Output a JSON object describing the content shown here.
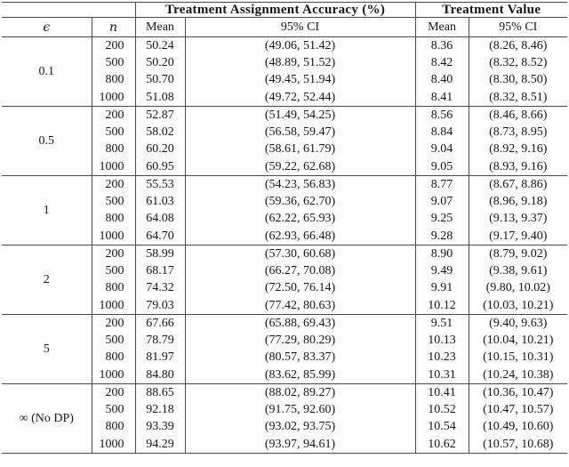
{
  "table": {
    "title_groups": {
      "accuracy": "Treatment Assignment Accuracy (%)",
      "value": "Treatment Value"
    },
    "columns": {
      "epsilon": "ϵ",
      "n": "n",
      "mean": "Mean",
      "ci": "95% CI"
    },
    "line_color": "#4a4a4a",
    "text_color": "#161616",
    "groups": [
      {
        "epsilon": "0.1",
        "rows": [
          {
            "n": "200",
            "acc_mean": "50.24",
            "acc_ci": "(49.06, 51.42)",
            "val_mean": "8.36",
            "val_ci": "(8.26, 8.46)"
          },
          {
            "n": "500",
            "acc_mean": "50.20",
            "acc_ci": "(48.89, 51.52)",
            "val_mean": "8.42",
            "val_ci": "(8.32, 8.52)"
          },
          {
            "n": "800",
            "acc_mean": "50.70",
            "acc_ci": "(49.45, 51.94)",
            "val_mean": "8.40",
            "val_ci": "(8.30, 8.50)"
          },
          {
            "n": "1000",
            "acc_mean": "51.08",
            "acc_ci": "(49.72, 52.44)",
            "val_mean": "8.41",
            "val_ci": "(8.32, 8.51)"
          }
        ]
      },
      {
        "epsilon": "0.5",
        "rows": [
          {
            "n": "200",
            "acc_mean": "52.87",
            "acc_ci": "(51.49, 54.25)",
            "val_mean": "8.56",
            "val_ci": "(8.46, 8.66)"
          },
          {
            "n": "500",
            "acc_mean": "58.02",
            "acc_ci": "(56.58, 59.47)",
            "val_mean": "8.84",
            "val_ci": "(8.73, 8.95)"
          },
          {
            "n": "800",
            "acc_mean": "60.20",
            "acc_ci": "(58.61, 61.79)",
            "val_mean": "9.04",
            "val_ci": "(8.92, 9.16)"
          },
          {
            "n": "1000",
            "acc_mean": "60.95",
            "acc_ci": "(59.22, 62.68)",
            "val_mean": "9.05",
            "val_ci": "(8.93, 9.16)"
          }
        ]
      },
      {
        "epsilon": "1",
        "rows": [
          {
            "n": "200",
            "acc_mean": "55.53",
            "acc_ci": "(54.23, 56.83)",
            "val_mean": "8.77",
            "val_ci": "(8.67, 8.86)"
          },
          {
            "n": "500",
            "acc_mean": "61.03",
            "acc_ci": "(59.36, 62.70)",
            "val_mean": "9.07",
            "val_ci": "(8.96, 9.18)"
          },
          {
            "n": "800",
            "acc_mean": "64.08",
            "acc_ci": "(62.22, 65.93)",
            "val_mean": "9.25",
            "val_ci": "(9.13, 9.37)"
          },
          {
            "n": "1000",
            "acc_mean": "64.70",
            "acc_ci": "(62.93, 66.48)",
            "val_mean": "9.28",
            "val_ci": "(9.17, 9.40)"
          }
        ]
      },
      {
        "epsilon": "2",
        "rows": [
          {
            "n": "200",
            "acc_mean": "58.99",
            "acc_ci": "(57.30, 60.68)",
            "val_mean": "8.90",
            "val_ci": "(8.79, 9.02)"
          },
          {
            "n": "500",
            "acc_mean": "68.17",
            "acc_ci": "(66.27, 70.08)",
            "val_mean": "9.49",
            "val_ci": "(9.38, 9.61)"
          },
          {
            "n": "800",
            "acc_mean": "74.32",
            "acc_ci": "(72.50, 76.14)",
            "val_mean": "9.91",
            "val_ci": "(9.80, 10.02)"
          },
          {
            "n": "1000",
            "acc_mean": "79.03",
            "acc_ci": "(77.42, 80.63)",
            "val_mean": "10.12",
            "val_ci": "(10.03, 10.21)"
          }
        ]
      },
      {
        "epsilon": "5",
        "rows": [
          {
            "n": "200",
            "acc_mean": "67.66",
            "acc_ci": "(65.88, 69.43)",
            "val_mean": "9.51",
            "val_ci": "(9.40, 9.63)"
          },
          {
            "n": "500",
            "acc_mean": "78.79",
            "acc_ci": "(77.29, 80.29)",
            "val_mean": "10.13",
            "val_ci": "(10.04, 10.21)"
          },
          {
            "n": "800",
            "acc_mean": "81.97",
            "acc_ci": "(80.57, 83.37)",
            "val_mean": "10.23",
            "val_ci": "(10.15, 10.31)"
          },
          {
            "n": "1000",
            "acc_mean": "84.80",
            "acc_ci": "(83.62, 85.99)",
            "val_mean": "10.31",
            "val_ci": "(10.24, 10.38)"
          }
        ]
      },
      {
        "epsilon": "∞ (No DP)",
        "rows": [
          {
            "n": "200",
            "acc_mean": "88.65",
            "acc_ci": "(88.02, 89.27)",
            "val_mean": "10.41",
            "val_ci": "(10.36, 10.47)"
          },
          {
            "n": "500",
            "acc_mean": "92.18",
            "acc_ci": "(91.75, 92.60)",
            "val_mean": "10.52",
            "val_ci": "(10.47, 10.57)"
          },
          {
            "n": "800",
            "acc_mean": "93.39",
            "acc_ci": "(93.02, 93.75)",
            "val_mean": "10.54",
            "val_ci": "(10.49, 10.60)"
          },
          {
            "n": "1000",
            "acc_mean": "94.29",
            "acc_ci": "(93.97, 94.61)",
            "val_mean": "10.62",
            "val_ci": "(10.57, 10.68)"
          }
        ]
      }
    ]
  }
}
